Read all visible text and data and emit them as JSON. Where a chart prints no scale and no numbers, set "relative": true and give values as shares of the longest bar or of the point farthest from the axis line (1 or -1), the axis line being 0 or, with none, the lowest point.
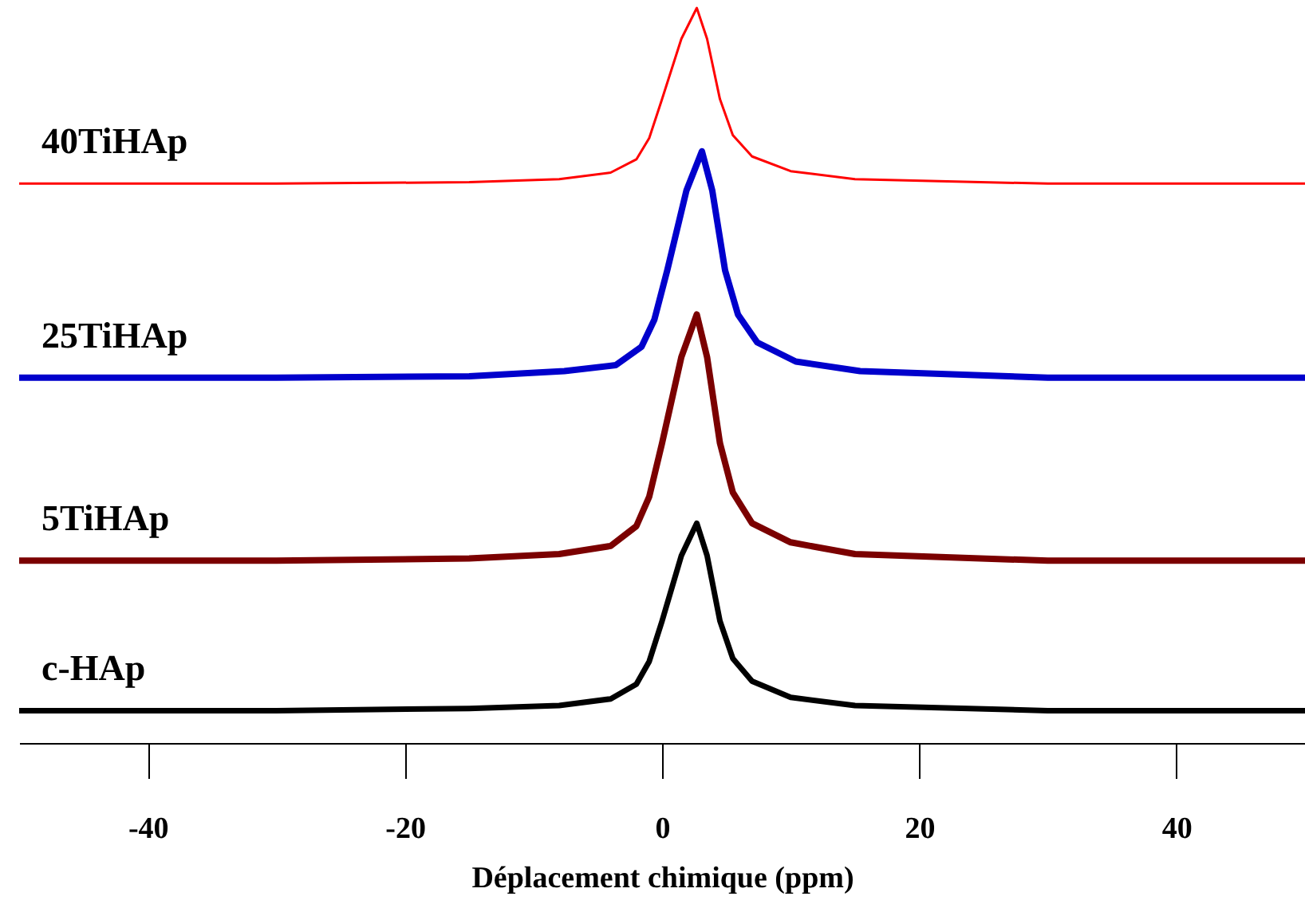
{
  "chart_data": {
    "type": "line",
    "relative": true,
    "xlabel": "Déplacement chimique (ppm)",
    "xlim": [
      -50,
      50
    ],
    "xticks": [
      -40,
      -20,
      0,
      20,
      40
    ],
    "grid": false,
    "marker": "none",
    "line_style": "solid",
    "x": [
      -50,
      -30,
      -15,
      -8,
      -4,
      -2,
      -1,
      0,
      1.5,
      2.7,
      3.5,
      4.5,
      5.5,
      7,
      10,
      15,
      30,
      50
    ],
    "series": [
      {
        "name": "c-HAp",
        "color": "#000000",
        "values": [
          0.044,
          0.044,
          0.047,
          0.051,
          0.06,
          0.08,
          0.111,
          0.166,
          0.255,
          0.299,
          0.255,
          0.166,
          0.115,
          0.084,
          0.062,
          0.051,
          0.044,
          0.044
        ]
      },
      {
        "name": "5TiHAp",
        "color": "#7b0000",
        "values": [
          0.248,
          0.248,
          0.251,
          0.257,
          0.268,
          0.295,
          0.335,
          0.408,
          0.525,
          0.583,
          0.525,
          0.408,
          0.341,
          0.299,
          0.273,
          0.257,
          0.248,
          0.248
        ]
      },
      {
        "name": "25TiHAp",
        "color": "#0000cc",
        "x": [
          -50,
          -30,
          -15,
          -7.6,
          -3.6,
          -1.6,
          -0.6,
          0.4,
          1.9,
          3.1,
          3.9,
          4.9,
          5.9,
          7.4,
          10.4,
          15.4,
          30,
          50
        ],
        "values": [
          0.497,
          0.497,
          0.499,
          0.506,
          0.514,
          0.539,
          0.576,
          0.643,
          0.752,
          0.805,
          0.752,
          0.643,
          0.583,
          0.545,
          0.519,
          0.506,
          0.497,
          0.497
        ]
      },
      {
        "name": "40TiHAp",
        "color": "#ff0000",
        "values": [
          0.761,
          0.761,
          0.763,
          0.767,
          0.776,
          0.794,
          0.823,
          0.876,
          0.958,
          1,
          0.958,
          0.876,
          0.827,
          0.798,
          0.778,
          0.767,
          0.761,
          0.761
        ]
      }
    ]
  }
}
